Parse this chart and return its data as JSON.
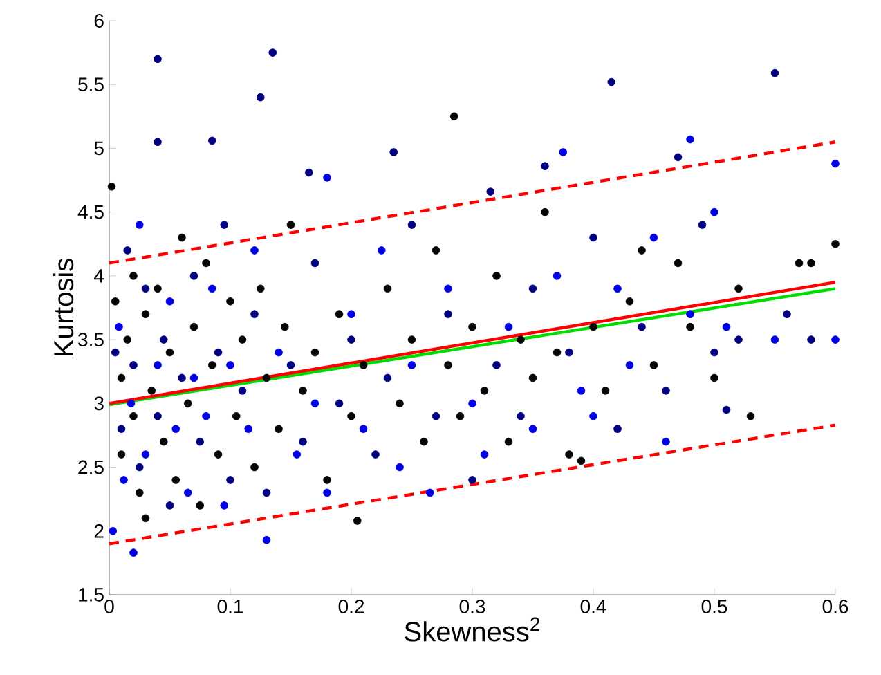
{
  "chart_data": {
    "type": "scatter",
    "xlabel": "Skewness$^{2}$",
    "ylabel": "Kurtosis",
    "xlim": [
      0,
      0.6
    ],
    "ylim": [
      1.5,
      6
    ],
    "xticks": [
      0,
      0.1,
      0.2,
      0.3,
      0.4,
      0.5,
      0.6
    ],
    "yticks": [
      1.5,
      2,
      2.5,
      3,
      3.5,
      4,
      4.5,
      5,
      5.5,
      6
    ],
    "grid": false,
    "series": [
      {
        "color": "#050505",
        "x": [
          0.002,
          0.005,
          0.01,
          0.01,
          0.015,
          0.02,
          0.02,
          0.025,
          0.03,
          0.03,
          0.035,
          0.04,
          0.045,
          0.05,
          0.055,
          0.06,
          0.065,
          0.07,
          0.075,
          0.08,
          0.085,
          0.09,
          0.1,
          0.105,
          0.11,
          0.12,
          0.125,
          0.13,
          0.14,
          0.145,
          0.15,
          0.16,
          0.17,
          0.18,
          0.19,
          0.2,
          0.21,
          0.205,
          0.23,
          0.24,
          0.25,
          0.26,
          0.27,
          0.28,
          0.285,
          0.29,
          0.3,
          0.31,
          0.32,
          0.33,
          0.34,
          0.35,
          0.36,
          0.37,
          0.38,
          0.39,
          0.4,
          0.41,
          0.43,
          0.44,
          0.45,
          0.47,
          0.48,
          0.5,
          0.52,
          0.53,
          0.57,
          0.58,
          0.6
        ],
        "values": [
          4.7,
          3.8,
          3.2,
          2.6,
          3.5,
          2.9,
          4.0,
          2.3,
          3.7,
          2.1,
          3.1,
          3.9,
          2.7,
          3.4,
          2.4,
          4.3,
          3.0,
          3.6,
          2.2,
          4.1,
          3.3,
          2.6,
          3.8,
          2.9,
          3.5,
          2.5,
          3.9,
          3.2,
          2.8,
          3.6,
          4.4,
          3.1,
          3.4,
          2.4,
          3.7,
          2.9,
          3.3,
          2.08,
          3.9,
          3.0,
          3.5,
          2.7,
          4.2,
          3.3,
          5.25,
          2.9,
          3.6,
          3.1,
          4.0,
          2.7,
          3.5,
          3.2,
          4.5,
          3.4,
          2.6,
          2.55,
          3.6,
          3.1,
          3.8,
          4.2,
          3.3,
          4.1,
          3.6,
          3.2,
          3.9,
          2.9,
          4.1,
          4.1,
          4.25
        ]
      },
      {
        "color": "#000080",
        "x": [
          0.04,
          0.135,
          0.125,
          0.415,
          0.55,
          0.04,
          0.085,
          0.165,
          0.235,
          0.47,
          0.36,
          0.315,
          0.005,
          0.01,
          0.015,
          0.02,
          0.025,
          0.03,
          0.04,
          0.045,
          0.05,
          0.06,
          0.07,
          0.075,
          0.09,
          0.095,
          0.1,
          0.11,
          0.12,
          0.13,
          0.15,
          0.16,
          0.17,
          0.19,
          0.2,
          0.22,
          0.23,
          0.25,
          0.27,
          0.28,
          0.3,
          0.32,
          0.34,
          0.35,
          0.38,
          0.4,
          0.42,
          0.44,
          0.46,
          0.49,
          0.5,
          0.51,
          0.52,
          0.56,
          0.58
        ],
        "values": [
          5.7,
          5.75,
          5.4,
          5.52,
          5.59,
          5.05,
          5.06,
          4.81,
          4.97,
          4.93,
          4.86,
          4.66,
          3.4,
          2.8,
          4.2,
          3.3,
          2.5,
          3.9,
          2.9,
          3.5,
          2.2,
          3.2,
          4.0,
          2.7,
          3.4,
          4.4,
          2.4,
          3.1,
          3.7,
          2.3,
          3.3,
          2.7,
          4.1,
          3.0,
          3.5,
          2.6,
          3.2,
          4.4,
          2.9,
          3.7,
          2.4,
          3.3,
          2.9,
          3.9,
          3.4,
          4.3,
          2.8,
          3.6,
          3.1,
          4.4,
          3.4,
          2.95,
          3.5,
          3.7,
          3.5
        ]
      },
      {
        "color": "#0000e6",
        "x": [
          0.48,
          0.6,
          0.375,
          0.18,
          0.003,
          0.008,
          0.012,
          0.018,
          0.025,
          0.03,
          0.02,
          0.04,
          0.05,
          0.055,
          0.065,
          0.07,
          0.08,
          0.085,
          0.095,
          0.1,
          0.115,
          0.12,
          0.13,
          0.14,
          0.155,
          0.17,
          0.18,
          0.2,
          0.21,
          0.225,
          0.24,
          0.25,
          0.265,
          0.28,
          0.3,
          0.31,
          0.33,
          0.35,
          0.37,
          0.39,
          0.4,
          0.42,
          0.43,
          0.45,
          0.46,
          0.48,
          0.5,
          0.51,
          0.55,
          0.6
        ],
        "values": [
          5.07,
          4.88,
          4.97,
          4.77,
          2.0,
          3.6,
          2.4,
          3.0,
          4.4,
          2.6,
          1.83,
          3.3,
          3.8,
          2.8,
          2.3,
          3.2,
          2.9,
          3.9,
          2.2,
          3.3,
          2.8,
          4.2,
          1.93,
          3.4,
          2.6,
          3.0,
          2.3,
          3.7,
          2.8,
          4.2,
          2.5,
          3.3,
          2.3,
          3.9,
          3.0,
          2.6,
          3.6,
          2.8,
          4.0,
          3.1,
          2.9,
          3.9,
          3.3,
          4.3,
          2.7,
          3.7,
          4.5,
          3.6,
          3.5,
          3.5
        ]
      },
      {
        "type": "line",
        "marker": "none",
        "color": "#00dd00",
        "x": [
          0,
          0.6
        ],
        "values": [
          2.99,
          3.9
        ]
      },
      {
        "type": "line",
        "marker": "none",
        "color": "#ff0000",
        "x": [
          0,
          0.6
        ],
        "values": [
          3.0,
          3.95
        ]
      },
      {
        "type": "line",
        "marker": "none",
        "color": "#ff0000",
        "line_style": "dashed",
        "x": [
          0,
          0.6
        ],
        "values": [
          4.1,
          5.05
        ]
      },
      {
        "type": "line",
        "marker": "none",
        "color": "#ff0000",
        "line_style": "dashed",
        "x": [
          0,
          0.6
        ],
        "values": [
          1.9,
          2.83
        ]
      }
    ]
  }
}
